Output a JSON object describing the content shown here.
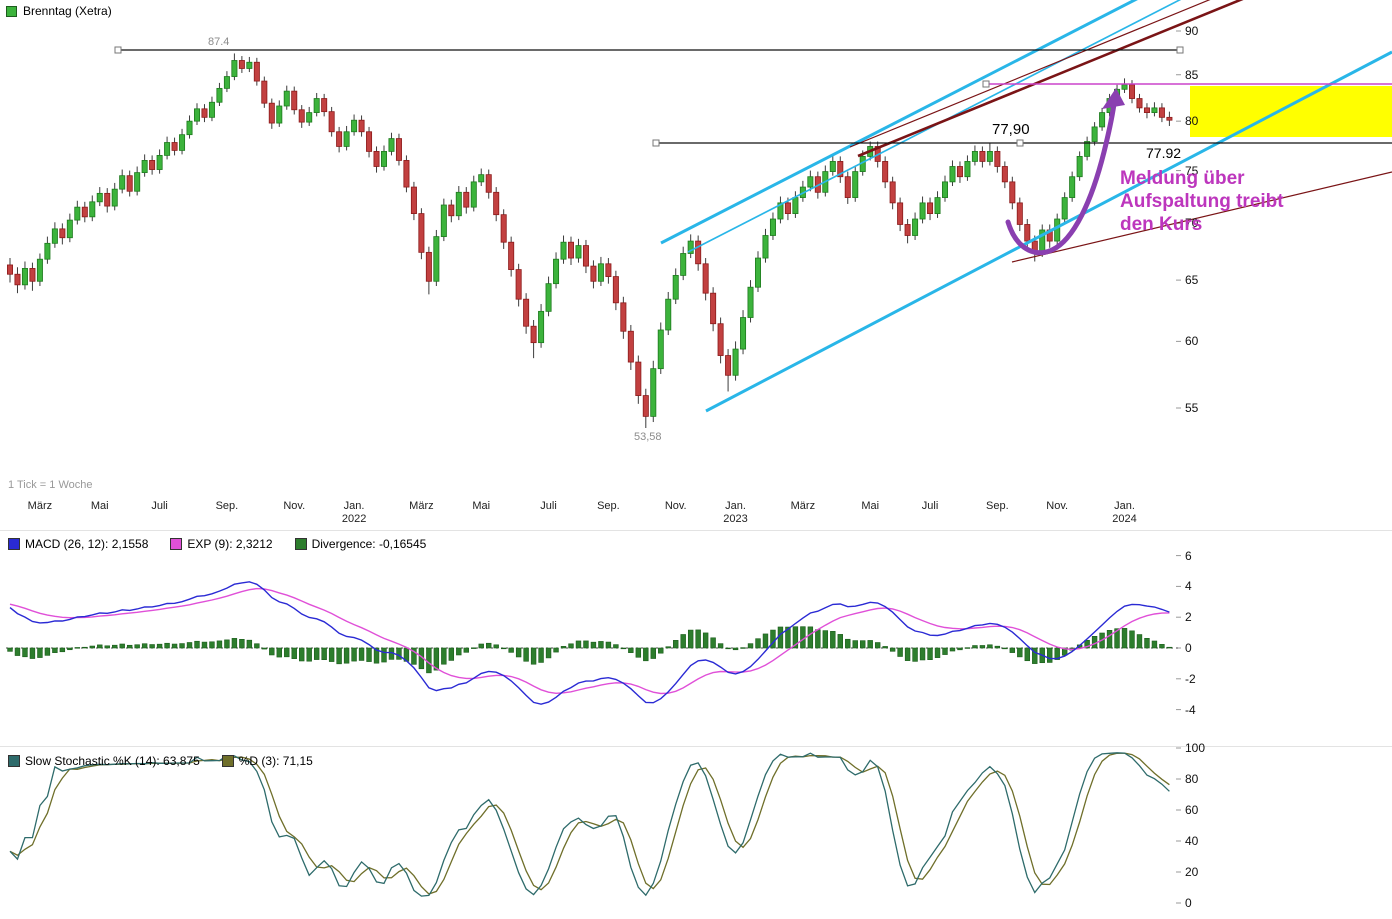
{
  "header": {
    "title": "Brenntag (Xetra)"
  },
  "footer_note": "1 Tick = 1 Woche",
  "colors": {
    "candle_up": "#3cb33c",
    "candle_up_border": "#1e7a1e",
    "candle_down": "#c24040",
    "candle_down_border": "#8b1a1a",
    "wick": "#3c3c3c",
    "macd_line": "#2a2ad4",
    "signal_line": "#e050d8",
    "histogram": "#2d7d2d",
    "histogram_border": "#1a5c1a",
    "stoch_k": "#2e6b6b",
    "stoch_d": "#6f6f2a",
    "channel_cyan": "#29b6e8",
    "trend_maroon": "#7a1416",
    "highlight_yellow": "#ffff00",
    "magenta_line": "#cc44cc",
    "note_magenta": "#bd36bd",
    "arrow_purple": "#8a3fb0",
    "level_line": "#111111"
  },
  "annotations": {
    "peak_label": "87.4",
    "low_label": "53,58",
    "level_label_1": "77,90",
    "level_label_2": "77.92",
    "note_text": "Meldung über\nAufspaltung treibt\nden Kurs"
  },
  "chart_data": [
    {
      "type": "candlestick",
      "name": "price-weekly",
      "tick_interval": "1 week",
      "y_scale": "log",
      "ylim": [
        52,
        92
      ],
      "y_ticks": [
        90,
        85,
        80,
        75,
        70,
        65,
        60,
        55
      ],
      "x_ticks": [
        {
          "i": 4,
          "m": "März"
        },
        {
          "i": 12,
          "m": "Mai"
        },
        {
          "i": 20,
          "m": "Juli"
        },
        {
          "i": 29,
          "m": "Sep."
        },
        {
          "i": 38,
          "m": "Nov."
        },
        {
          "i": 46,
          "m": "Jan.",
          "y": "2022"
        },
        {
          "i": 55,
          "m": "März"
        },
        {
          "i": 63,
          "m": "Mai"
        },
        {
          "i": 72,
          "m": "Juli"
        },
        {
          "i": 80,
          "m": "Sep."
        },
        {
          "i": 89,
          "m": "Nov."
        },
        {
          "i": 97,
          "m": "Jan.",
          "y": "2023"
        },
        {
          "i": 106,
          "m": "März"
        },
        {
          "i": 115,
          "m": "Mai"
        },
        {
          "i": 123,
          "m": "Juli"
        },
        {
          "i": 132,
          "m": "Sep."
        },
        {
          "i": 140,
          "m": "Nov."
        },
        {
          "i": 149,
          "m": "Jan.",
          "y": "2024"
        }
      ],
      "key_levels": {
        "high": 87.4,
        "low": 53.58,
        "horizontal_line": 77.9
      },
      "candles": [
        [
          66.3,
          66.9,
          64.8,
          65.5
        ],
        [
          65.5,
          66.1,
          63.9,
          64.6
        ],
        [
          64.6,
          66.6,
          64.2,
          66.0
        ],
        [
          66.0,
          66.5,
          64.1,
          64.9
        ],
        [
          64.9,
          67.3,
          64.5,
          66.8
        ],
        [
          66.8,
          68.8,
          66.4,
          68.2
        ],
        [
          68.2,
          70.1,
          67.8,
          69.5
        ],
        [
          69.5,
          70.0,
          68.1,
          68.7
        ],
        [
          68.7,
          70.9,
          68.3,
          70.3
        ],
        [
          70.3,
          72.1,
          69.9,
          71.5
        ],
        [
          71.5,
          72.0,
          70.1,
          70.6
        ],
        [
          70.6,
          72.6,
          70.2,
          72.0
        ],
        [
          72.0,
          73.4,
          71.6,
          72.8
        ],
        [
          72.8,
          73.3,
          71.0,
          71.6
        ],
        [
          71.6,
          73.8,
          71.2,
          73.2
        ],
        [
          73.2,
          75.1,
          72.8,
          74.5
        ],
        [
          74.5,
          75.0,
          72.5,
          73.0
        ],
        [
          73.0,
          75.4,
          72.6,
          74.8
        ],
        [
          74.8,
          76.6,
          74.4,
          76.0
        ],
        [
          76.0,
          76.5,
          74.6,
          75.1
        ],
        [
          75.1,
          77.1,
          74.7,
          76.5
        ],
        [
          76.5,
          78.4,
          76.1,
          77.8
        ],
        [
          77.8,
          78.3,
          76.5,
          77.0
        ],
        [
          77.0,
          79.2,
          76.6,
          78.6
        ],
        [
          78.6,
          80.6,
          78.2,
          80.0
        ],
        [
          80.0,
          81.9,
          79.6,
          81.3
        ],
        [
          81.3,
          81.8,
          79.9,
          80.4
        ],
        [
          80.4,
          82.6,
          80.0,
          82.0
        ],
        [
          82.0,
          84.1,
          81.6,
          83.5
        ],
        [
          83.5,
          85.4,
          83.1,
          84.8
        ],
        [
          84.8,
          87.4,
          84.4,
          86.6
        ],
        [
          86.6,
          87.1,
          85.2,
          85.7
        ],
        [
          85.7,
          87.0,
          85.3,
          86.4
        ],
        [
          86.4,
          86.9,
          83.8,
          84.3
        ],
        [
          84.3,
          84.8,
          81.4,
          81.9
        ],
        [
          81.9,
          82.4,
          79.2,
          79.8
        ],
        [
          79.8,
          82.2,
          79.4,
          81.6
        ],
        [
          81.6,
          83.8,
          81.2,
          83.2
        ],
        [
          83.2,
          83.7,
          80.7,
          81.2
        ],
        [
          81.2,
          81.7,
          79.3,
          79.9
        ],
        [
          79.9,
          81.5,
          79.5,
          80.9
        ],
        [
          80.9,
          83.0,
          80.5,
          82.4
        ],
        [
          82.4,
          82.9,
          80.5,
          81.0
        ],
        [
          81.0,
          81.5,
          78.4,
          78.9
        ],
        [
          78.9,
          79.4,
          76.8,
          77.4
        ],
        [
          77.4,
          79.5,
          77.0,
          78.9
        ],
        [
          78.9,
          80.7,
          78.5,
          80.1
        ],
        [
          80.1,
          80.6,
          78.4,
          78.9
        ],
        [
          78.9,
          79.4,
          76.3,
          76.9
        ],
        [
          76.9,
          77.4,
          74.8,
          75.4
        ],
        [
          75.4,
          77.5,
          75.0,
          76.9
        ],
        [
          76.9,
          78.8,
          76.5,
          78.2
        ],
        [
          78.2,
          78.7,
          75.5,
          76.0
        ],
        [
          76.0,
          76.5,
          72.9,
          73.4
        ],
        [
          73.4,
          73.9,
          70.3,
          70.9
        ],
        [
          70.9,
          71.4,
          66.8,
          67.4
        ],
        [
          67.4,
          67.9,
          63.8,
          64.9
        ],
        [
          64.9,
          69.4,
          64.5,
          68.8
        ],
        [
          68.8,
          72.3,
          68.4,
          71.7
        ],
        [
          71.7,
          72.2,
          70.1,
          70.7
        ],
        [
          70.7,
          73.5,
          70.3,
          72.9
        ],
        [
          72.9,
          73.4,
          70.9,
          71.5
        ],
        [
          71.5,
          74.5,
          71.1,
          73.9
        ],
        [
          73.9,
          75.2,
          73.5,
          74.6
        ],
        [
          74.6,
          75.1,
          72.3,
          72.9
        ],
        [
          72.9,
          73.4,
          70.2,
          70.8
        ],
        [
          70.8,
          71.3,
          67.7,
          68.3
        ],
        [
          68.3,
          68.8,
          65.3,
          65.9
        ],
        [
          65.9,
          66.4,
          62.8,
          63.4
        ],
        [
          63.4,
          63.9,
          60.6,
          61.2
        ],
        [
          61.2,
          61.7,
          58.7,
          59.9
        ],
        [
          59.9,
          63.0,
          59.5,
          62.4
        ],
        [
          62.4,
          65.3,
          62.0,
          64.7
        ],
        [
          64.7,
          67.4,
          64.3,
          66.8
        ],
        [
          66.8,
          68.9,
          66.4,
          68.3
        ],
        [
          68.3,
          68.8,
          66.3,
          66.9
        ],
        [
          66.9,
          68.6,
          66.5,
          68.0
        ],
        [
          68.0,
          68.5,
          65.6,
          66.2
        ],
        [
          66.2,
          66.7,
          64.3,
          64.9
        ],
        [
          64.9,
          67.0,
          64.5,
          66.4
        ],
        [
          66.4,
          66.9,
          64.7,
          65.3
        ],
        [
          65.3,
          65.8,
          62.5,
          63.1
        ],
        [
          63.1,
          63.6,
          60.2,
          60.8
        ],
        [
          60.8,
          61.3,
          57.8,
          58.4
        ],
        [
          58.4,
          58.9,
          55.3,
          55.9
        ],
        [
          55.9,
          56.4,
          53.58,
          54.4
        ],
        [
          54.4,
          58.5,
          54.0,
          57.9
        ],
        [
          57.9,
          61.5,
          57.5,
          60.9
        ],
        [
          60.9,
          64.0,
          60.5,
          63.4
        ],
        [
          63.4,
          66.0,
          63.0,
          65.4
        ],
        [
          65.4,
          67.9,
          65.0,
          67.3
        ],
        [
          67.3,
          69.0,
          66.9,
          68.4
        ],
        [
          68.4,
          68.9,
          65.8,
          66.4
        ],
        [
          66.4,
          66.9,
          63.3,
          63.9
        ],
        [
          63.9,
          64.4,
          60.8,
          61.4
        ],
        [
          61.4,
          61.9,
          58.3,
          58.9
        ],
        [
          58.9,
          59.4,
          56.2,
          57.4
        ],
        [
          57.4,
          60.0,
          57.0,
          59.4
        ],
        [
          59.4,
          62.5,
          59.0,
          61.9
        ],
        [
          61.9,
          65.0,
          61.5,
          64.4
        ],
        [
          64.4,
          67.5,
          64.0,
          66.9
        ],
        [
          66.9,
          69.5,
          66.5,
          68.9
        ],
        [
          68.9,
          71.0,
          68.5,
          70.4
        ],
        [
          70.4,
          72.5,
          70.0,
          71.9
        ],
        [
          71.9,
          72.4,
          70.3,
          70.9
        ],
        [
          70.9,
          73.0,
          70.5,
          72.4
        ],
        [
          72.4,
          74.0,
          72.0,
          73.4
        ],
        [
          73.4,
          75.0,
          73.0,
          74.4
        ],
        [
          74.4,
          74.9,
          72.3,
          72.9
        ],
        [
          72.9,
          75.5,
          72.5,
          74.9
        ],
        [
          74.9,
          76.5,
          74.5,
          75.9
        ],
        [
          75.9,
          76.4,
          73.8,
          74.4
        ],
        [
          74.4,
          74.9,
          71.8,
          72.4
        ],
        [
          72.4,
          75.5,
          72.0,
          74.9
        ],
        [
          74.9,
          77.0,
          74.5,
          76.4
        ],
        [
          76.4,
          77.9,
          76.0,
          77.4
        ],
        [
          77.4,
          77.9,
          75.3,
          75.9
        ],
        [
          75.9,
          76.4,
          73.3,
          73.9
        ],
        [
          73.9,
          74.4,
          71.3,
          71.9
        ],
        [
          71.9,
          72.4,
          69.3,
          69.9
        ],
        [
          69.9,
          70.4,
          68.2,
          68.9
        ],
        [
          68.9,
          71.0,
          68.5,
          70.4
        ],
        [
          70.4,
          72.5,
          70.0,
          71.9
        ],
        [
          71.9,
          72.4,
          70.3,
          70.9
        ],
        [
          70.9,
          73.0,
          70.5,
          72.4
        ],
        [
          72.4,
          74.5,
          72.0,
          73.9
        ],
        [
          73.9,
          76.0,
          73.5,
          75.4
        ],
        [
          75.4,
          75.9,
          73.8,
          74.4
        ],
        [
          74.4,
          76.5,
          74.0,
          75.9
        ],
        [
          75.9,
          77.5,
          75.5,
          76.9
        ],
        [
          76.9,
          77.4,
          75.3,
          75.9
        ],
        [
          75.9,
          77.7,
          75.5,
          76.9
        ],
        [
          76.9,
          77.4,
          74.8,
          75.4
        ],
        [
          75.4,
          75.9,
          73.3,
          73.9
        ],
        [
          73.9,
          74.4,
          71.3,
          71.9
        ],
        [
          71.9,
          72.4,
          69.3,
          69.9
        ],
        [
          69.9,
          70.4,
          67.8,
          68.4
        ],
        [
          68.4,
          68.9,
          66.6,
          67.4
        ],
        [
          67.4,
          69.9,
          67.0,
          69.4
        ],
        [
          69.4,
          69.9,
          67.8,
          68.4
        ],
        [
          68.4,
          70.9,
          68.0,
          70.4
        ],
        [
          70.4,
          72.9,
          70.0,
          72.4
        ],
        [
          72.4,
          74.9,
          72.0,
          74.4
        ],
        [
          74.4,
          76.9,
          74.0,
          76.4
        ],
        [
          76.4,
          78.4,
          76.0,
          77.9
        ],
        [
          77.9,
          79.9,
          77.5,
          79.4
        ],
        [
          79.4,
          81.4,
          79.0,
          80.9
        ],
        [
          80.9,
          82.9,
          80.5,
          82.4
        ],
        [
          82.4,
          83.9,
          82.0,
          83.4
        ],
        [
          83.4,
          84.6,
          83.0,
          83.9
        ],
        [
          83.9,
          84.4,
          81.9,
          82.4
        ],
        [
          82.4,
          82.9,
          80.9,
          81.4
        ],
        [
          81.4,
          81.9,
          80.3,
          80.9
        ],
        [
          80.9,
          82.0,
          80.5,
          81.4
        ],
        [
          81.4,
          81.9,
          79.9,
          80.4
        ],
        [
          80.4,
          81.0,
          79.5,
          80.1
        ]
      ]
    },
    {
      "type": "line+histogram",
      "name": "MACD",
      "params": {
        "slow": 26,
        "fast": 12,
        "signal": 9
      },
      "derived_from": "candle closes",
      "legend": [
        {
          "label": "MACD (26, 12): 2,1558",
          "color": "#2a2ad4"
        },
        {
          "label": "EXP (9): 2,3212",
          "color": "#e050d8"
        },
        {
          "label": "Divergence: -0,16545",
          "color": "#2d7d2d"
        }
      ],
      "y_ticks": [
        6,
        4,
        2,
        0,
        -2,
        -4
      ],
      "ylim": [
        -4.5,
        6.5
      ],
      "zero_line": "dotted"
    },
    {
      "type": "line",
      "name": "Slow Stochastic",
      "params": {
        "k": 14,
        "smoothing": 3,
        "d": 3
      },
      "derived_from": "candles",
      "legend": [
        {
          "label": "Slow Stochastic %K (14): 63,875",
          "color": "#2e6b6b"
        },
        {
          "label": "%D (3): 71,15",
          "color": "#6f6f2a"
        }
      ],
      "y_ticks": [
        100,
        80,
        60,
        40,
        20,
        0
      ],
      "ylim": [
        0,
        100
      ]
    }
  ]
}
